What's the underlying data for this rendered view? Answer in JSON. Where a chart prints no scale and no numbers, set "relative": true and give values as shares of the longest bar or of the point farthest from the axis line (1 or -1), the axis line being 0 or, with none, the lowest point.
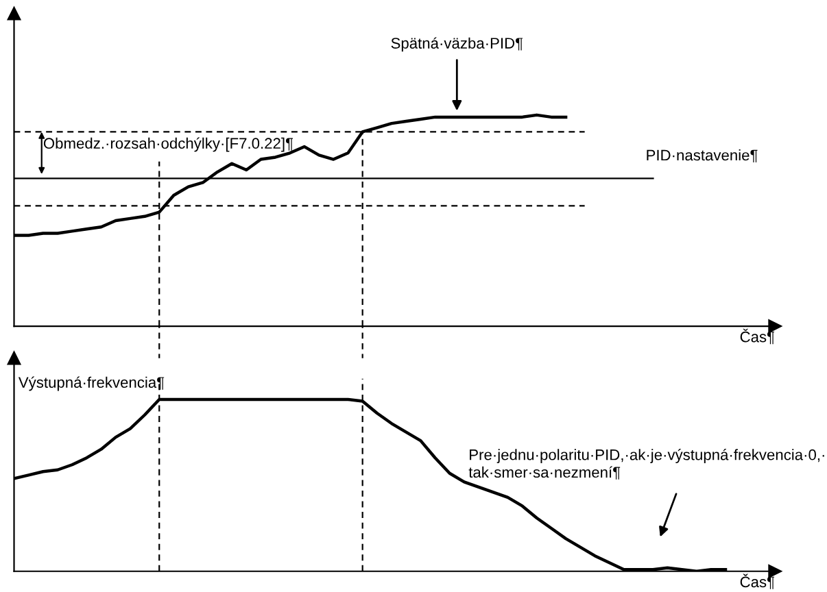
{
  "chart_data": [
    {
      "type": "line",
      "relative": true,
      "xlabel": "Čas¶",
      "tick_labels": false,
      "line_style": "solid",
      "categories": [
        null,
        null,
        null,
        null,
        null,
        null,
        null,
        null,
        null,
        null,
        null,
        null,
        null,
        null,
        null,
        null,
        null,
        null,
        null,
        null,
        null,
        null,
        null,
        null,
        null,
        null,
        null,
        null,
        null,
        null,
        null,
        null,
        null,
        null,
        null,
        null,
        null,
        null,
        null,
        null,
        null,
        null,
        null,
        null,
        null,
        null,
        null,
        null,
        null,
        null
      ],
      "series": [
        {
          "color": "#000000",
          "values": [
            0.43,
            0.43,
            0.44,
            0.44,
            0.45,
            0.46,
            0.47,
            0.5,
            0.51,
            0.52,
            0.54,
            0.62,
            0.66,
            0.68,
            0.73,
            0.77,
            0.74,
            0.79,
            0.8,
            0.82,
            0.85,
            0.81,
            0.79,
            0.82,
            0.92,
            0.94,
            0.96,
            0.97,
            0.98,
            0.99,
            0.99,
            0.99,
            0.99,
            0.99,
            0.99,
            0.99,
            1,
            0.99,
            0.99,
            null,
            null,
            null,
            null,
            null,
            null,
            null,
            null,
            null,
            null,
            null
          ]
        }
      ],
      "ref_lines": [
        {
          "axis": "y",
          "value": 0.7,
          "label": "PID·nastavenie¶",
          "color": "#000000",
          "line_style": "solid"
        },
        {
          "axis": "y",
          "value": 0.92,
          "color": "#000000",
          "line_style": "dashed"
        },
        {
          "axis": "y",
          "value": 0.57,
          "color": "#000000",
          "line_style": "dashed"
        }
      ],
      "annotations": [
        "Spätná·väzba·PID¶",
        "Obmedz.·rozsah·odchýlky·[F7.0.22]¶"
      ]
    },
    {
      "type": "line",
      "relative": true,
      "xlabel": "Čas¶",
      "tick_labels": false,
      "line_style": "solid",
      "categories": [
        null,
        null,
        null,
        null,
        null,
        null,
        null,
        null,
        null,
        null,
        null,
        null,
        null,
        null,
        null,
        null,
        null,
        null,
        null,
        null,
        null,
        null,
        null,
        null,
        null,
        null,
        null,
        null,
        null,
        null,
        null,
        null,
        null,
        null,
        null,
        null,
        null,
        null,
        null,
        null,
        null,
        null,
        null,
        null,
        null,
        null,
        null,
        null,
        null,
        null
      ],
      "series": [
        {
          "name": "Výstupná·frekvencia¶",
          "color": "#000000",
          "values": [
            0.54,
            0.56,
            0.58,
            0.59,
            0.62,
            0.66,
            0.71,
            0.78,
            0.83,
            0.91,
            1,
            1,
            1,
            1,
            1,
            1,
            1,
            1,
            1,
            1,
            1,
            1,
            1,
            1,
            0.99,
            0.92,
            0.86,
            0.81,
            0.76,
            0.66,
            0.57,
            0.52,
            0.49,
            0.46,
            0.43,
            0.38,
            0.31,
            0.25,
            0.19,
            0.14,
            0.09,
            0.05,
            0.01,
            0.01,
            0.01,
            0.02,
            0.01,
            0,
            0.01,
            0.01
          ]
        }
      ],
      "annotations": [
        "Pre·jednu·polaritu·PID,·ak·je·výstupná·frekvencia·0,·\ntak·smer·sa·nezmení¶"
      ]
    }
  ]
}
